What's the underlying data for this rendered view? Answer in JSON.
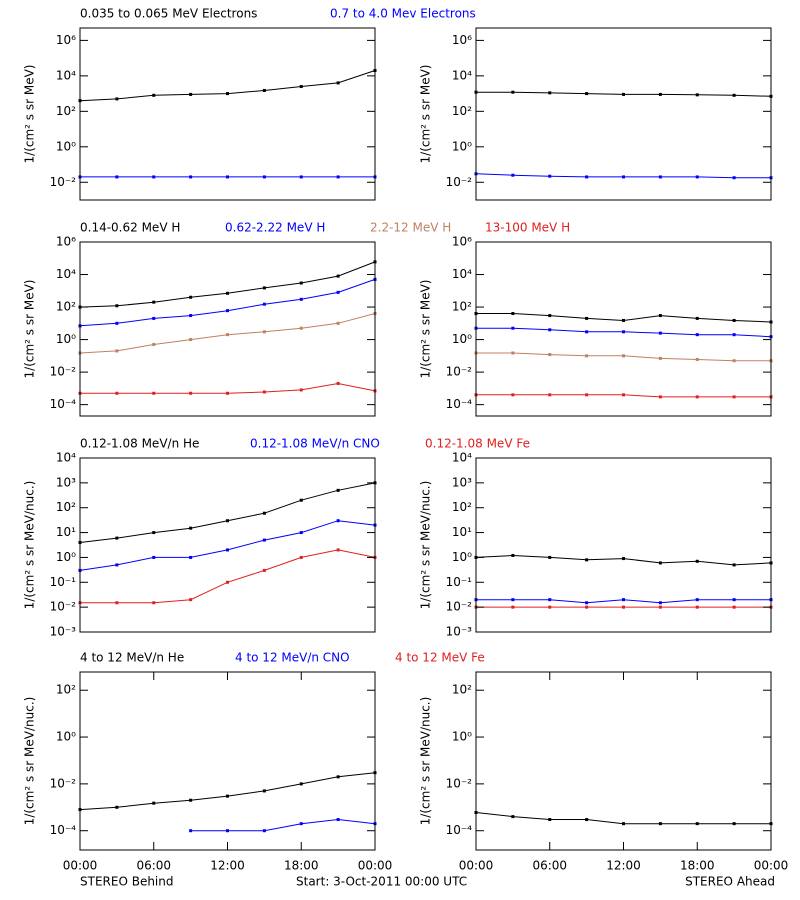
{
  "chart_data": [
    {
      "type": "line",
      "log_y": true,
      "ylabel": "1/(cm² s sr MeV)",
      "x": [
        0,
        3,
        6,
        9,
        12,
        15,
        18,
        21,
        24
      ],
      "xlim": [
        0,
        24
      ],
      "ylim": [
        0.001,
        5000000
      ],
      "yticks": [
        {
          "value": 0.01,
          "label": "10⁻²"
        },
        {
          "value": 1,
          "label": "10⁰"
        },
        {
          "value": 100,
          "label": "10²"
        },
        {
          "value": 10000,
          "label": "10⁴"
        },
        {
          "value": 1000000,
          "label": "10⁶"
        }
      ],
      "series": [
        {
          "name": "0.035 to 0.065 MeV Electrons",
          "color": "#000000",
          "values": [
            400,
            500,
            800,
            900,
            1000,
            1500,
            2500,
            4000,
            20000
          ]
        },
        {
          "name": "0.7 to 4.0 Mev Electrons",
          "color": "#0000ff",
          "values": [
            0.02,
            0.02,
            0.02,
            0.02,
            0.02,
            0.02,
            0.02,
            0.02,
            0.02
          ]
        }
      ]
    },
    {
      "type": "line",
      "log_y": true,
      "ylabel": "1/(cm² s sr MeV)",
      "x": [
        0,
        3,
        6,
        9,
        12,
        15,
        18,
        21,
        24
      ],
      "xlim": [
        0,
        24
      ],
      "ylim": [
        0.001,
        5000000
      ],
      "yticks": [
        {
          "value": 0.01,
          "label": "10⁻²"
        },
        {
          "value": 1,
          "label": "10⁰"
        },
        {
          "value": 100,
          "label": "10²"
        },
        {
          "value": 10000,
          "label": "10⁴"
        },
        {
          "value": 1000000,
          "label": "10⁶"
        }
      ],
      "series": [
        {
          "color": "#000000",
          "values": [
            1200,
            1200,
            1100,
            1000,
            900,
            900,
            850,
            800,
            700
          ]
        },
        {
          "color": "#0000ff",
          "values": [
            0.03,
            0.025,
            0.022,
            0.02,
            0.02,
            0.02,
            0.02,
            0.018,
            0.018
          ]
        }
      ]
    },
    {
      "type": "line",
      "log_y": true,
      "ylabel": "1/(cm² s sr MeV)",
      "x": [
        0,
        3,
        6,
        9,
        12,
        15,
        18,
        21,
        24
      ],
      "xlim": [
        0,
        24
      ],
      "ylim": [
        2e-05,
        1000000
      ],
      "yticks": [
        {
          "value": 0.0001,
          "label": "10⁻⁴"
        },
        {
          "value": 0.01,
          "label": "10⁻²"
        },
        {
          "value": 1,
          "label": "10⁰"
        },
        {
          "value": 100,
          "label": "10²"
        },
        {
          "value": 10000,
          "label": "10⁴"
        },
        {
          "value": 1000000,
          "label": "10⁶"
        }
      ],
      "series": [
        {
          "name": "0.14-0.62 MeV H",
          "color": "#000000",
          "values": [
            100,
            120,
            200,
            400,
            700,
            1500,
            3000,
            8000,
            60000
          ]
        },
        {
          "name": "0.62-2.22 MeV H",
          "color": "#0000ff",
          "values": [
            7,
            10,
            20,
            30,
            60,
            150,
            300,
            800,
            5000
          ]
        },
        {
          "name": "2.2-12 MeV H",
          "color": "#c08060",
          "values": [
            0.15,
            0.2,
            0.5,
            1,
            2,
            3,
            5,
            10,
            40
          ]
        },
        {
          "name": "13-100 MeV H",
          "color": "#e02020",
          "values": [
            0.0005,
            0.0005,
            0.0005,
            0.0005,
            0.0005,
            0.0006,
            0.0008,
            0.002,
            0.0007
          ]
        }
      ]
    },
    {
      "type": "line",
      "log_y": true,
      "ylabel": "1/(cm² s sr MeV)",
      "x": [
        0,
        3,
        6,
        9,
        12,
        15,
        18,
        21,
        24
      ],
      "xlim": [
        0,
        24
      ],
      "ylim": [
        2e-05,
        1000000
      ],
      "yticks": [
        {
          "value": 0.0001,
          "label": "10⁻⁴"
        },
        {
          "value": 0.01,
          "label": "10⁻²"
        },
        {
          "value": 1,
          "label": "10⁰"
        },
        {
          "value": 100,
          "label": "10²"
        },
        {
          "value": 10000,
          "label": "10⁴"
        },
        {
          "value": 1000000,
          "label": "10⁶"
        }
      ],
      "series": [
        {
          "color": "#000000",
          "values": [
            40,
            40,
            30,
            20,
            15,
            30,
            20,
            15,
            12
          ]
        },
        {
          "color": "#0000ff",
          "values": [
            5,
            5,
            4,
            3,
            3,
            2.5,
            2,
            2,
            1.5
          ]
        },
        {
          "color": "#c08060",
          "values": [
            0.15,
            0.15,
            0.12,
            0.1,
            0.1,
            0.07,
            0.06,
            0.05,
            0.05
          ]
        },
        {
          "color": "#e02020",
          "values": [
            0.0004,
            0.0004,
            0.0004,
            0.0004,
            0.0004,
            0.0003,
            0.0003,
            0.0003,
            0.0003
          ]
        }
      ]
    },
    {
      "type": "line",
      "log_y": true,
      "ylabel": "1/(cm² s sr MeV/nuc.)",
      "x": [
        0,
        3,
        6,
        9,
        12,
        15,
        18,
        21,
        24
      ],
      "xlim": [
        0,
        24
      ],
      "ylim": [
        0.001,
        10000
      ],
      "yticks": [
        {
          "value": 0.001,
          "label": "10⁻³"
        },
        {
          "value": 0.01,
          "label": "10⁻²"
        },
        {
          "value": 0.1,
          "label": "10⁻¹"
        },
        {
          "value": 1,
          "label": "10⁰"
        },
        {
          "value": 10,
          "label": "10¹"
        },
        {
          "value": 100,
          "label": "10²"
        },
        {
          "value": 1000,
          "label": "10³"
        },
        {
          "value": 10000,
          "label": "10⁴"
        }
      ],
      "series": [
        {
          "name": "0.12-1.08 MeV/n He",
          "color": "#000000",
          "values": [
            4,
            6,
            10,
            15,
            30,
            60,
            200,
            500,
            1000
          ]
        },
        {
          "name": "0.12-1.08 MeV/n CNO",
          "color": "#0000ff",
          "values": [
            0.3,
            0.5,
            1,
            1,
            2,
            5,
            10,
            30,
            20
          ]
        },
        {
          "name": "0.12-1.08 MeV Fe",
          "color": "#e02020",
          "values": [
            0.015,
            0.015,
            0.015,
            0.02,
            0.1,
            0.3,
            1,
            2,
            1
          ]
        }
      ]
    },
    {
      "type": "line",
      "log_y": true,
      "ylabel": "1/(cm² s sr MeV/nuc.)",
      "x": [
        0,
        3,
        6,
        9,
        12,
        15,
        18,
        21,
        24
      ],
      "xlim": [
        0,
        24
      ],
      "ylim": [
        0.001,
        10000
      ],
      "yticks": [
        {
          "value": 0.001,
          "label": "10⁻³"
        },
        {
          "value": 0.01,
          "label": "10⁻²"
        },
        {
          "value": 0.1,
          "label": "10⁻¹"
        },
        {
          "value": 1,
          "label": "10⁰"
        },
        {
          "value": 10,
          "label": "10¹"
        },
        {
          "value": 100,
          "label": "10²"
        },
        {
          "value": 1000,
          "label": "10³"
        },
        {
          "value": 10000,
          "label": "10⁴"
        }
      ],
      "series": [
        {
          "color": "#000000",
          "values": [
            1,
            1.2,
            1,
            0.8,
            0.9,
            0.6,
            0.7,
            0.5,
            0.6
          ]
        },
        {
          "color": "#0000ff",
          "values": [
            0.02,
            0.02,
            0.02,
            0.015,
            0.02,
            0.015,
            0.02,
            0.02,
            0.02
          ]
        },
        {
          "color": "#e02020",
          "values": [
            0.01,
            0.01,
            0.01,
            0.01,
            0.01,
            0.01,
            0.01,
            0.01,
            0.01
          ]
        }
      ]
    },
    {
      "type": "line",
      "log_y": true,
      "ylabel": "1/(cm² s sr MeV/nuc.)",
      "x": [
        0,
        3,
        6,
        9,
        12,
        15,
        18,
        21,
        24
      ],
      "xlim": [
        0,
        24
      ],
      "ylim": [
        1.5e-05,
        600
      ],
      "xticks": [
        {
          "value": 0,
          "label": "00:00"
        },
        {
          "value": 6,
          "label": "06:00"
        },
        {
          "value": 12,
          "label": "12:00"
        },
        {
          "value": 18,
          "label": "18:00"
        },
        {
          "value": 24,
          "label": "00:00"
        }
      ],
      "yticks": [
        {
          "value": 0.0001,
          "label": "10⁻⁴"
        },
        {
          "value": 0.01,
          "label": "10⁻²"
        },
        {
          "value": 1,
          "label": "10⁰"
        },
        {
          "value": 100,
          "label": "10²"
        }
      ],
      "series": [
        {
          "name": "4 to 12 MeV/n He",
          "color": "#000000",
          "values": [
            0.0008,
            0.001,
            0.0015,
            0.002,
            0.003,
            0.005,
            0.01,
            0.02,
            0.03
          ]
        },
        {
          "name": "4 to 12 MeV/n CNO",
          "color": "#0000ff",
          "values": [
            null,
            null,
            null,
            0.0001,
            0.0001,
            0.0001,
            0.0002,
            0.0003,
            0.0002
          ]
        },
        {
          "name": "4 to 12 MeV Fe",
          "color": "#e02020",
          "values": [
            null,
            null,
            null,
            null,
            null,
            null,
            null,
            null,
            null
          ]
        }
      ]
    },
    {
      "type": "line",
      "log_y": true,
      "ylabel": "1/(cm² s sr MeV/nuc.)",
      "x": [
        0,
        3,
        6,
        9,
        12,
        15,
        18,
        21,
        24
      ],
      "xlim": [
        0,
        24
      ],
      "ylim": [
        1.5e-05,
        600
      ],
      "xticks": [
        {
          "value": 0,
          "label": "00:00"
        },
        {
          "value": 6,
          "label": "06:00"
        },
        {
          "value": 12,
          "label": "12:00"
        },
        {
          "value": 18,
          "label": "18:00"
        },
        {
          "value": 24,
          "label": "00:00"
        }
      ],
      "yticks": [
        {
          "value": 0.0001,
          "label": "10⁻⁴"
        },
        {
          "value": 0.01,
          "label": "10⁻²"
        },
        {
          "value": 1,
          "label": "10⁰"
        },
        {
          "value": 100,
          "label": "10²"
        }
      ],
      "series": [
        {
          "color": "#000000",
          "values": [
            0.0006,
            0.0004,
            0.0003,
            0.0003,
            0.0002,
            0.0002,
            0.0002,
            0.0002,
            0.0002
          ]
        },
        {
          "color": "#0000ff",
          "values": [
            null,
            null,
            null,
            null,
            null,
            null,
            null,
            null,
            null
          ]
        },
        {
          "color": "#e02020",
          "values": [
            null,
            null,
            null,
            null,
            null,
            null,
            null,
            null,
            null
          ]
        }
      ]
    }
  ],
  "footer": {
    "left": "STEREO Behind",
    "center": "Start:  3-Oct-2011 00:00 UTC",
    "right": "STEREO Ahead"
  }
}
